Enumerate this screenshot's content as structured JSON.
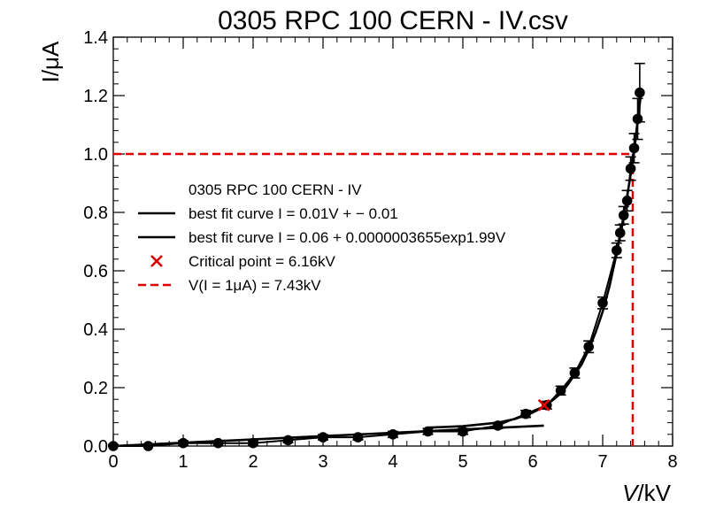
{
  "chart_data": {
    "type": "scatter",
    "title": "0305 RPC 100 CERN - IV.csv",
    "xlabel_var": "V",
    "xlabel_unit": "/kV",
    "ylabel": "I/μA",
    "xlim": [
      0,
      8
    ],
    "ylim": [
      0,
      1.4
    ],
    "x_ticks": [
      0,
      1,
      2,
      3,
      4,
      5,
      6,
      7,
      8
    ],
    "y_ticks": [
      0.0,
      0.2,
      0.4,
      0.6,
      0.8,
      1.0,
      1.2,
      1.4
    ],
    "x_tick_labels": [
      "0",
      "1",
      "2",
      "3",
      "4",
      "5",
      "6",
      "7",
      "8"
    ],
    "y_tick_labels": [
      "0.0",
      "0.2",
      "0.4",
      "0.6",
      "0.8",
      "1.0",
      "1.2",
      "1.4"
    ],
    "grid": false,
    "legend_position": "center-left",
    "series": [
      {
        "name": "0305 RPC 100 CERN - IV",
        "kind": "points_with_errors",
        "color": "#000000",
        "x": [
          0.0,
          0.5,
          1.0,
          1.5,
          2.0,
          2.5,
          3.0,
          3.5,
          4.0,
          4.5,
          5.0,
          5.5,
          5.9,
          6.2,
          6.4,
          6.6,
          6.8,
          7.0,
          7.2,
          7.25,
          7.3,
          7.35,
          7.4,
          7.45,
          7.5,
          7.53
        ],
        "y": [
          0.0,
          0.0,
          0.01,
          0.01,
          0.01,
          0.02,
          0.03,
          0.03,
          0.04,
          0.05,
          0.05,
          0.07,
          0.11,
          0.14,
          0.19,
          0.25,
          0.34,
          0.49,
          0.67,
          0.73,
          0.79,
          0.84,
          0.95,
          1.02,
          1.12,
          1.21
        ],
        "yerr": [
          0.005,
          0.005,
          0.008,
          0.008,
          0.008,
          0.008,
          0.009,
          0.009,
          0.01,
          0.01,
          0.01,
          0.01,
          0.012,
          0.013,
          0.015,
          0.017,
          0.02,
          0.02,
          0.025,
          0.027,
          0.03,
          0.035,
          0.04,
          0.05,
          0.07,
          0.1
        ]
      },
      {
        "name": "best fit curve I = 0.01V + − 0.01",
        "kind": "linear_fit",
        "color": "#000000",
        "x": [
          0.0,
          6.16
        ],
        "y": [
          0.0,
          0.07
        ]
      },
      {
        "name": "best fit curve I = 0.06 + 0.0000003655exp1.99V",
        "kind": "exp_fit",
        "color": "#000000",
        "x": [
          4.5,
          5.0,
          5.5,
          5.75,
          6.0,
          6.16,
          6.3,
          6.4,
          6.5,
          6.6,
          6.7,
          6.8,
          6.9,
          7.0,
          7.1,
          7.2,
          7.3,
          7.4,
          7.45,
          7.5,
          7.55
        ],
        "y": [
          0.063,
          0.068,
          0.08,
          0.093,
          0.115,
          0.135,
          0.16,
          0.18,
          0.21,
          0.245,
          0.28,
          0.33,
          0.39,
          0.46,
          0.55,
          0.66,
          0.78,
          0.93,
          1.01,
          1.11,
          1.21
        ]
      }
    ],
    "critical_point": {
      "label": "Critical point = 6.16kV",
      "x": 6.16,
      "y": 0.14,
      "color": "#e00000"
    },
    "threshold": {
      "label": "V(I = 1μA) = 7.43kV",
      "v": 7.43,
      "i": 1.0,
      "color": "#e00000"
    },
    "legend": {
      "entries": [
        {
          "kind": "none",
          "text": "0305 RPC 100 CERN - IV"
        },
        {
          "kind": "line",
          "text": "best fit curve I = 0.01V + − 0.01",
          "color": "#000000"
        },
        {
          "kind": "line",
          "text": "best fit curve I = 0.06 + 0.0000003655exp1.99V",
          "color": "#000000"
        },
        {
          "kind": "cross",
          "text": "Critical point = 6.16kV",
          "color": "#e00000"
        },
        {
          "kind": "dash",
          "text": "V(I = 1μA) = 7.43kV",
          "color": "#e00000"
        }
      ]
    }
  }
}
